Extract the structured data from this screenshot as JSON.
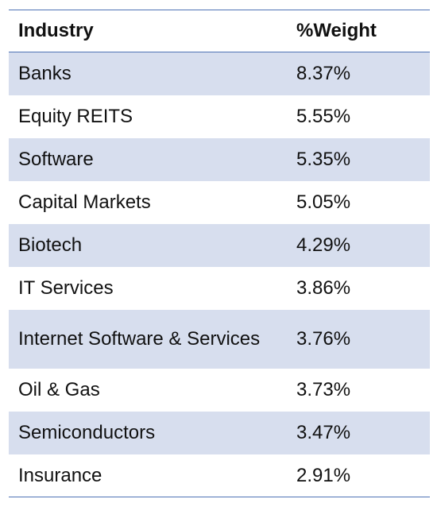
{
  "table": {
    "headers": [
      "Industry",
      "%Weight"
    ],
    "rows": [
      {
        "industry": "Banks",
        "weight": "8.37%"
      },
      {
        "industry": "Equity REITS",
        "weight": "5.55%"
      },
      {
        "industry": "Software",
        "weight": "5.35%"
      },
      {
        "industry": "Capital Markets",
        "weight": "5.05%"
      },
      {
        "industry": "Biotech",
        "weight": "4.29%"
      },
      {
        "industry": "IT Services",
        "weight": "3.86%"
      },
      {
        "industry": "Internet Software & Services",
        "weight": "3.76%"
      },
      {
        "industry": "Oil & Gas",
        "weight": "3.73%"
      },
      {
        "industry": "Semiconductors",
        "weight": "3.47%"
      },
      {
        "industry": "Insurance",
        "weight": "2.91%"
      }
    ]
  },
  "colors": {
    "rule": "#4f73b5",
    "shade": "#d7deee"
  }
}
